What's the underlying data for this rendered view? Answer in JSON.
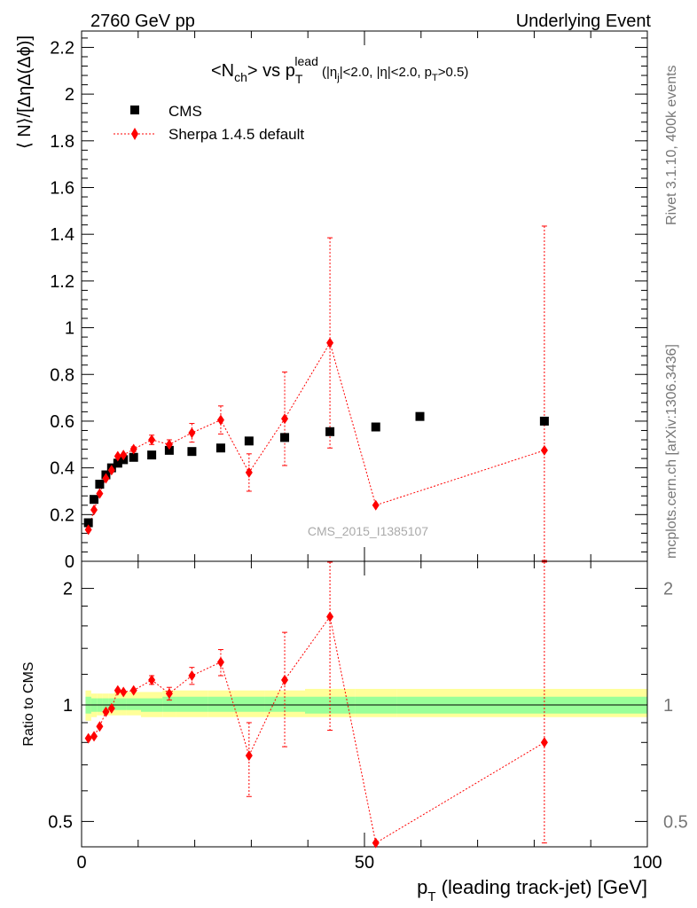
{
  "header": {
    "left": "2760 GeV pp",
    "right": "Underlying Event"
  },
  "side_labels": {
    "rivet": "Rivet 3.1.10,  400k events",
    "mcplots": "mcplots.cern.ch [arXiv:1306.3436]"
  },
  "colors": {
    "cms": "#000000",
    "mc": "#ff0000",
    "band_outer": "#ffff99",
    "band_inner": "#99ff99"
  },
  "chart_data": [
    {
      "type": "scatter",
      "title": "<N_ch> vs p_T^lead (|η_j|<2.0, |η|<2.0, p_T>0.5)",
      "title_parts": {
        "main": "<N",
        "ch": "ch",
        "vs": "> vs p",
        "T": "T",
        "lead": "lead",
        "cuts_a": " (|η",
        "j": "j",
        "cuts_b": "|<2.0, |η|<2.0, p",
        "T2": "T",
        "cuts_c": ">0.5)"
      },
      "ylabel": "⟨ N⟩/[ΔηΔ(Δϕ)]",
      "xlim": [
        0,
        100
      ],
      "ylim": [
        0,
        2.27
      ],
      "yticks": [
        0,
        0.2,
        0.4,
        0.6,
        0.8,
        1,
        1.2,
        1.4,
        1.6,
        1.8,
        2,
        2.2
      ],
      "ytick_labels": [
        "0",
        "0.2",
        "0.4",
        "0.6",
        "0.8",
        "1",
        "1.2",
        "1.4",
        "1.6",
        "1.8",
        "2",
        "2.2"
      ],
      "watermark": "CMS_2015_I1385107",
      "legend_position": "top-left",
      "series": [
        {
          "name": "CMS",
          "x": [
            1.2,
            2.2,
            3.2,
            4.3,
            5.3,
            6.4,
            7.4,
            9.2,
            12.4,
            15.5,
            19.5,
            24.6,
            29.6,
            35.9,
            43.9,
            52.0,
            59.8,
            81.8
          ],
          "y": [
            0.165,
            0.265,
            0.33,
            0.37,
            0.4,
            0.42,
            0.435,
            0.445,
            0.455,
            0.475,
            0.47,
            0.485,
            0.515,
            0.53,
            0.555,
            0.575,
            0.62,
            0.6
          ]
        },
        {
          "name": "Sherpa 1.4.5 default",
          "x": [
            1.2,
            2.2,
            3.2,
            4.3,
            5.3,
            6.4,
            7.4,
            9.2,
            12.4,
            15.5,
            19.5,
            24.6,
            29.6,
            35.9,
            43.9,
            52.0,
            81.8
          ],
          "y": [
            0.135,
            0.22,
            0.29,
            0.355,
            0.39,
            0.45,
            0.455,
            0.48,
            0.52,
            0.5,
            0.55,
            0.605,
            0.38,
            0.61,
            0.935,
            0.24,
            0.475
          ],
          "err_lo": [
            0,
            0,
            0,
            0,
            0,
            0,
            0,
            0.01,
            0.02,
            0.02,
            0.04,
            0.06,
            0.08,
            0.2,
            0.45,
            0,
            0.5
          ],
          "err_hi": [
            0,
            0,
            0,
            0,
            0,
            0,
            0,
            0.01,
            0.02,
            0.02,
            0.04,
            0.06,
            0.08,
            0.2,
            0.45,
            0,
            0.96
          ]
        }
      ]
    },
    {
      "type": "scatter",
      "ylabel": "Ratio to CMS",
      "xlabel": "p_T (leading track-jet) [GeV]",
      "xlabel_parts": {
        "p": "p",
        "T": "T",
        "rest": " (leading track-jet) [GeV]"
      },
      "xlim": [
        0,
        100
      ],
      "xticks": [
        0,
        50,
        100
      ],
      "xtick_labels": [
        "0",
        "50",
        "100"
      ],
      "ylim": [
        0.43,
        2.35
      ],
      "yscale": "log",
      "yticks": [
        0.5,
        1,
        2
      ],
      "ytick_labels": [
        "0.5",
        "1",
        "2"
      ],
      "band": {
        "x_edges": [
          0.7,
          1.7,
          2.7,
          3.7,
          4.8,
          5.8,
          6.9,
          7.9,
          10.5,
          14.3,
          16.7,
          22.3,
          26.9,
          32.3,
          39.5,
          48.3,
          55.7,
          100.0
        ],
        "outer_lo": [
          0.91,
          0.93,
          0.94,
          0.94,
          0.94,
          0.94,
          0.94,
          0.94,
          0.93,
          0.93,
          0.93,
          0.93,
          0.93,
          0.93,
          0.93,
          0.93,
          0.93
        ],
        "outer_hi": [
          1.09,
          1.07,
          1.07,
          1.07,
          1.07,
          1.08,
          1.08,
          1.08,
          1.08,
          1.09,
          1.09,
          1.09,
          1.09,
          1.09,
          1.1,
          1.1,
          1.1
        ],
        "inner_lo": [
          0.95,
          0.96,
          0.96,
          0.97,
          0.97,
          0.97,
          0.97,
          0.97,
          0.96,
          0.96,
          0.96,
          0.96,
          0.96,
          0.96,
          0.95,
          0.95,
          0.95
        ],
        "inner_hi": [
          1.05,
          1.04,
          1.04,
          1.04,
          1.04,
          1.04,
          1.04,
          1.04,
          1.04,
          1.05,
          1.05,
          1.05,
          1.05,
          1.05,
          1.05,
          1.05,
          1.05
        ]
      },
      "series": [
        {
          "name": "Sherpa 1.4.5 default",
          "x": [
            1.2,
            2.2,
            3.2,
            4.3,
            5.3,
            6.4,
            7.4,
            9.2,
            12.4,
            15.5,
            19.5,
            24.6,
            29.6,
            35.9,
            43.9,
            52.0,
            81.8
          ],
          "y": [
            0.82,
            0.83,
            0.88,
            0.96,
            0.98,
            1.09,
            1.08,
            1.09,
            1.16,
            1.07,
            1.19,
            1.29,
            0.74,
            1.16,
            1.69,
            0.44,
            0.8
          ],
          "err_lo": [
            0,
            0,
            0,
            0,
            0,
            0,
            0,
            0,
            0.03,
            0.04,
            0.06,
            0.1,
            0.16,
            0.38,
            0.83,
            0,
            0.4
          ],
          "err_hi": [
            0,
            0,
            0,
            0,
            0,
            0,
            0,
            0,
            0.03,
            0.04,
            0.06,
            0.1,
            0.16,
            0.38,
            0.7,
            0,
            1.6
          ]
        }
      ]
    }
  ]
}
